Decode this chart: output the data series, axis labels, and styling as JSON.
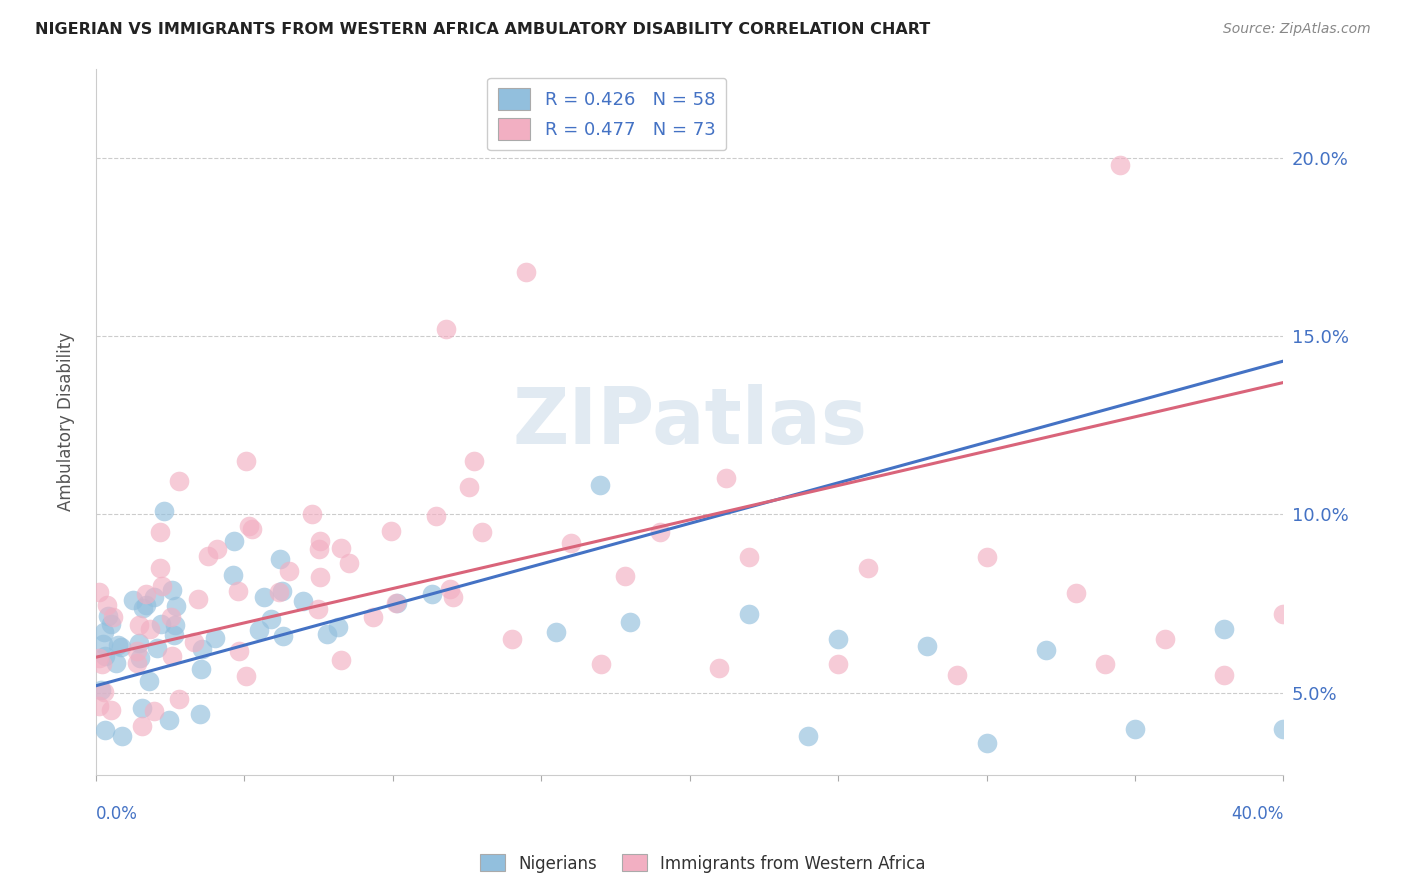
{
  "title": "NIGERIAN VS IMMIGRANTS FROM WESTERN AFRICA AMBULATORY DISABILITY CORRELATION CHART",
  "source": "Source: ZipAtlas.com",
  "ylabel": "Ambulatory Disability",
  "xmin": 0.0,
  "xmax": 0.4,
  "ymin": 0.027,
  "ymax": 0.225,
  "yticks": [
    0.05,
    0.1,
    0.15,
    0.2
  ],
  "ytick_labels": [
    "5.0%",
    "10.0%",
    "15.0%",
    "20.0%"
  ],
  "blue_color": "#92bfdd",
  "pink_color": "#f2afc2",
  "blue_line_color": "#4472c4",
  "pink_line_color": "#d9647a",
  "watermark": "ZIPatlas",
  "watermark_color": "#cddcea",
  "blue_line_start_y": 0.052,
  "blue_line_end_y": 0.143,
  "pink_line_start_y": 0.06,
  "pink_line_end_y": 0.137
}
